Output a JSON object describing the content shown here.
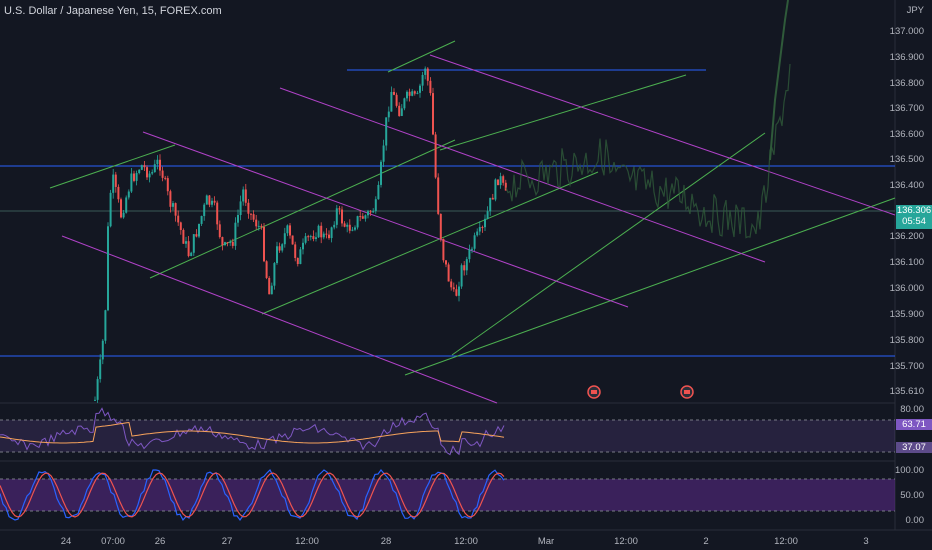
{
  "title": "U.S. Dollar / Japanese Yen, 15, FOREX.com",
  "currency": "JPY",
  "price_axis": [
    "137.000",
    "136.900",
    "136.800",
    "136.700",
    "136.600",
    "136.500",
    "136.400",
    "136.200",
    "136.100",
    "136.000",
    "135.900",
    "135.800",
    "135.700",
    "135.610"
  ],
  "last_price": {
    "value": "136.306",
    "countdown": "05:54"
  },
  "rsi_axis": [
    "80.00"
  ],
  "rsi_tags": [
    "63.71",
    "37.07"
  ],
  "stoch_axis": [
    "100.00",
    "50.00",
    "0.00"
  ],
  "time_axis": [
    "24",
    "07:00",
    "26",
    "27",
    "12:00",
    "28",
    "12:00",
    "Mar",
    "12:00",
    "2",
    "12:00",
    "3"
  ],
  "colors": {
    "background": "#131722",
    "up_candle": "#26a69a",
    "down_candle": "#ef5350",
    "channel_green": "#4caf50",
    "channel_purple": "#b042c8",
    "level_blue": "#2962ff",
    "rsi_fill": "#7e57c2",
    "last_price_tag": "#26a69a"
  },
  "icons": [
    "event-flag-icon-1",
    "event-flag-icon-2"
  ]
}
